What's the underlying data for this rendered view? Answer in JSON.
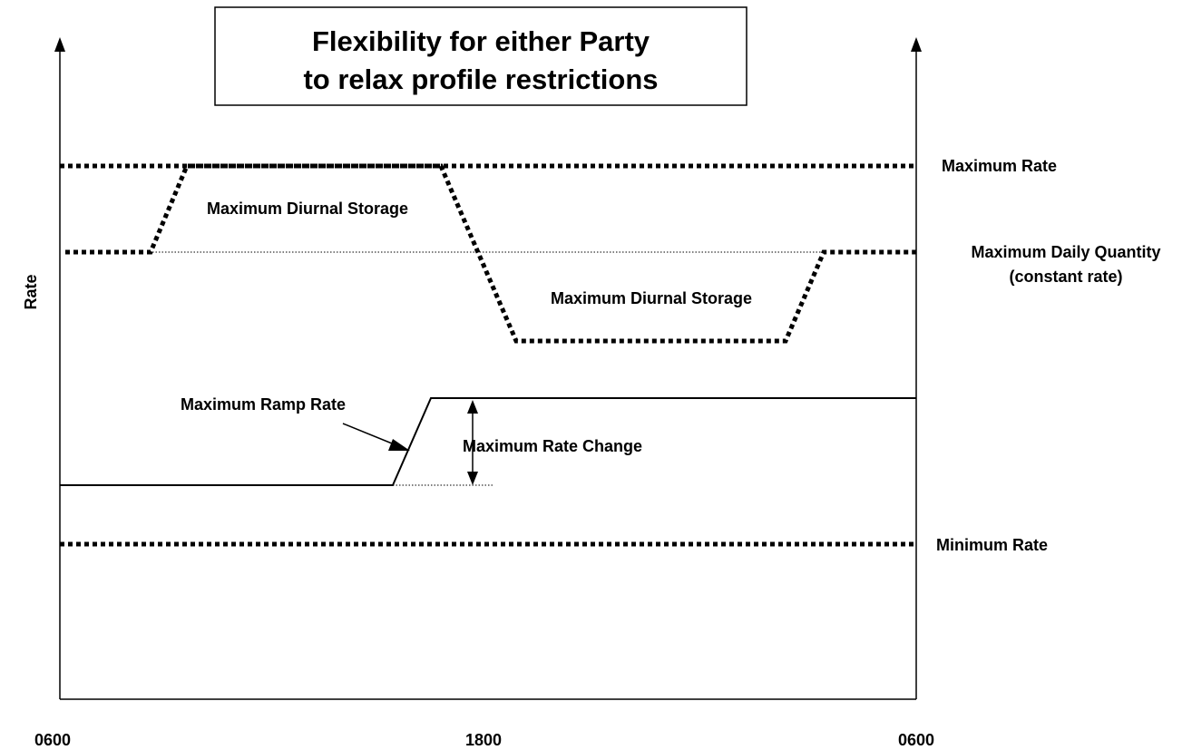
{
  "title": {
    "line1": "Flexibility for either Party",
    "line2": "to relax profile restrictions"
  },
  "axes": {
    "y_label": "Rate",
    "x_ticks": [
      "0600",
      "1800",
      "0600"
    ]
  },
  "levels": {
    "maximum_rate": "Maximum Rate",
    "maximum_daily_quantity_line1": "Maximum Daily Quantity",
    "maximum_daily_quantity_line2": "(constant rate)",
    "minimum_rate": "Minimum Rate"
  },
  "annotations": {
    "storage_upper": "Maximum Diurnal Storage",
    "storage_lower": "Maximum Diurnal Storage",
    "ramp_rate": "Maximum Ramp Rate",
    "rate_change": "Maximum Rate Change"
  },
  "icons": {
    "axis_arrow": "arrow-up-icon",
    "double_arrow": "double-headed-arrow-icon"
  }
}
